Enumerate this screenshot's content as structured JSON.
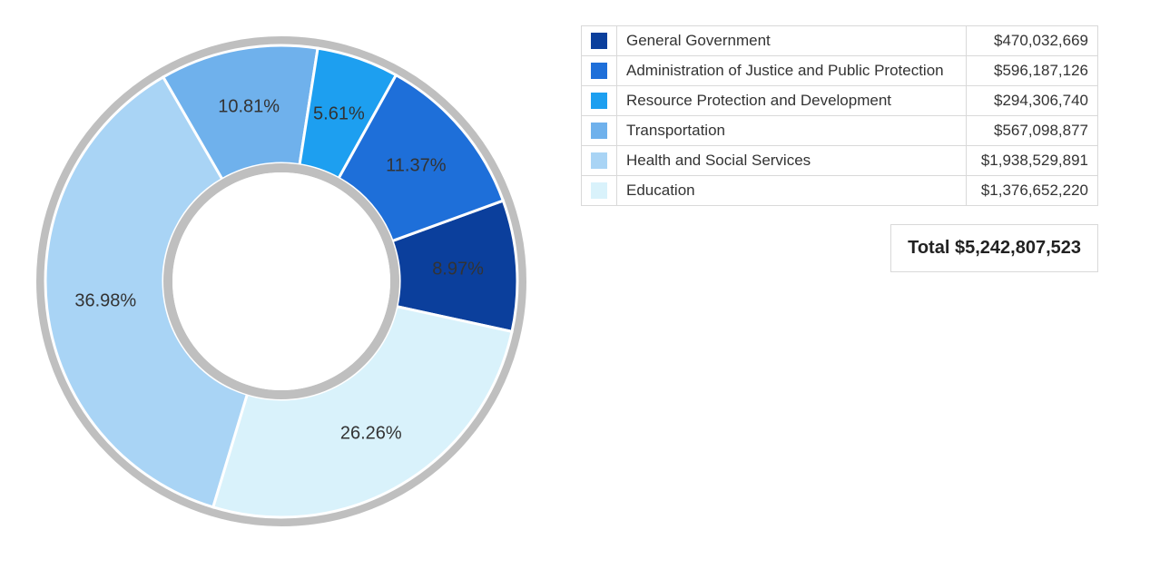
{
  "chart": {
    "type": "donut",
    "outer_radius": 260,
    "inner_radius": 130,
    "ring_border_color": "#bfbfbf",
    "ring_border_width": 10,
    "slice_separator_color": "#ffffff",
    "slice_separator_width": 3,
    "background_color": "#ffffff",
    "label_fontsize": 20,
    "label_color": "#333333",
    "start_angle_deg_from_top": 70,
    "slices": [
      {
        "label": "General Government",
        "percent": 8.97,
        "color": "#0b3f9c",
        "display": "8.97%"
      },
      {
        "label": "Education",
        "percent": 26.26,
        "color": "#d9f2fb",
        "display": "26.26%"
      },
      {
        "label": "Health and Social Services",
        "percent": 36.98,
        "color": "#a9d4f5",
        "display": "36.98%"
      },
      {
        "label": "Transportation",
        "percent": 10.81,
        "color": "#6fb1ec",
        "display": "10.81%"
      },
      {
        "label": "Resource Protection and Development",
        "percent": 5.61,
        "color": "#1d9ff0",
        "display": "5.61%"
      },
      {
        "label": "Administration of Justice and Public Protection",
        "percent": 11.37,
        "color": "#1e6fd9",
        "display": "11.37%"
      }
    ]
  },
  "legend": {
    "font_size": 17,
    "border_color": "#d9d9d9",
    "rows": [
      {
        "swatch": "#0b3f9c",
        "label": "General Government",
        "value": "$470,032,669"
      },
      {
        "swatch": "#1e6fd9",
        "label": "Administration of Justice and Public Protection",
        "value": "$596,187,126"
      },
      {
        "swatch": "#1d9ff0",
        "label": "Resource Protection and Development",
        "value": "$294,306,740"
      },
      {
        "swatch": "#6fb1ec",
        "label": "Transportation",
        "value": "$567,098,877"
      },
      {
        "swatch": "#a9d4f5",
        "label": "Health and Social Services",
        "value": "$1,938,529,891"
      },
      {
        "swatch": "#d9f2fb",
        "label": "Education",
        "value": "$1,376,652,220"
      }
    ],
    "total_label": "Total",
    "total_value": "$5,242,807,523"
  }
}
